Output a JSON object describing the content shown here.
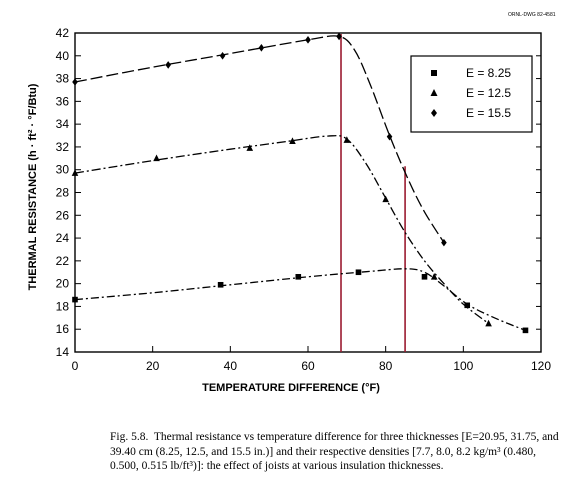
{
  "drawing_number": "ORNL-DWG 82-4581",
  "caption": {
    "label": "Fig. 5.8.",
    "text": "Thermal resistance vs temperature difference for three thicknesses [E=20.95, 31.75, and 39.40 cm (8.25, 12.5, and 15.5 in.)] and their respective densities [7.7, 8.0, 8.2 kg/m³ (0.480, 0.500, 0.515 lb/ft³)]: the effect of joists at various insulation thicknesses."
  },
  "chart_data": {
    "type": "line",
    "title": "",
    "xlabel": "TEMPERATURE DIFFERENCE (°F)",
    "ylabel": "THERMAL RESISTANCE (h · ft² · °F/Btu)",
    "xlim": [
      0,
      120
    ],
    "ylim": [
      14,
      42
    ],
    "xticks": [
      "0",
      "20",
      "40",
      "60",
      "80",
      "100",
      "120"
    ],
    "yticks": [
      "14",
      "16",
      "18",
      "20",
      "22",
      "24",
      "26",
      "28",
      "30",
      "32",
      "34",
      "36",
      "38",
      "40",
      "42"
    ],
    "grid": false,
    "legend_position": "top-right",
    "vertical_lines": [
      68.5,
      85
    ],
    "vertical_line_color": "#9b1b30",
    "series": [
      {
        "name": "E = 8.25",
        "marker": "square",
        "points": [
          [
            0,
            18.6
          ],
          [
            37.5,
            19.9
          ],
          [
            57.5,
            20.6
          ],
          [
            73,
            21.0
          ],
          [
            90,
            20.6
          ],
          [
            101,
            18.1
          ],
          [
            116,
            15.9
          ]
        ],
        "curve": [
          [
            0,
            18.6
          ],
          [
            20,
            19.2
          ],
          [
            40,
            19.9
          ],
          [
            60,
            20.6
          ],
          [
            75,
            21.05
          ],
          [
            85,
            21.3
          ],
          [
            90,
            21.0
          ],
          [
            95,
            19.8
          ],
          [
            101,
            18.2
          ],
          [
            108,
            17.0
          ],
          [
            116,
            15.9
          ]
        ]
      },
      {
        "name": "E = 12.5",
        "marker": "triangle",
        "points": [
          [
            0,
            29.7
          ],
          [
            21,
            31.0
          ],
          [
            45,
            31.9
          ],
          [
            56,
            32.5
          ],
          [
            70,
            32.6
          ],
          [
            80,
            27.4
          ],
          [
            92.5,
            20.6
          ],
          [
            106.5,
            16.5
          ]
        ],
        "curve": [
          [
            0,
            29.7
          ],
          [
            20,
            30.8
          ],
          [
            40,
            31.8
          ],
          [
            55,
            32.5
          ],
          [
            65,
            32.95
          ],
          [
            70,
            32.7
          ],
          [
            75,
            30.5
          ],
          [
            80,
            27.5
          ],
          [
            85,
            24.5
          ],
          [
            90,
            22.0
          ],
          [
            95,
            20.0
          ],
          [
            100,
            18.2
          ],
          [
            106.5,
            16.5
          ]
        ]
      },
      {
        "name": "E = 15.5",
        "marker": "diamond",
        "points": [
          [
            0,
            37.7
          ],
          [
            24,
            39.2
          ],
          [
            38,
            40.0
          ],
          [
            48,
            40.7
          ],
          [
            60,
            41.4
          ],
          [
            68,
            41.7
          ],
          [
            81,
            32.9
          ],
          [
            95,
            23.6
          ]
        ],
        "curve": [
          [
            0,
            37.7
          ],
          [
            20,
            39.0
          ],
          [
            40,
            40.2
          ],
          [
            60,
            41.4
          ],
          [
            68,
            41.7
          ],
          [
            72,
            40.5
          ],
          [
            76,
            37.5
          ],
          [
            81,
            33.0
          ],
          [
            86,
            29.0
          ],
          [
            90,
            26.3
          ],
          [
            95,
            23.6
          ]
        ]
      }
    ]
  }
}
